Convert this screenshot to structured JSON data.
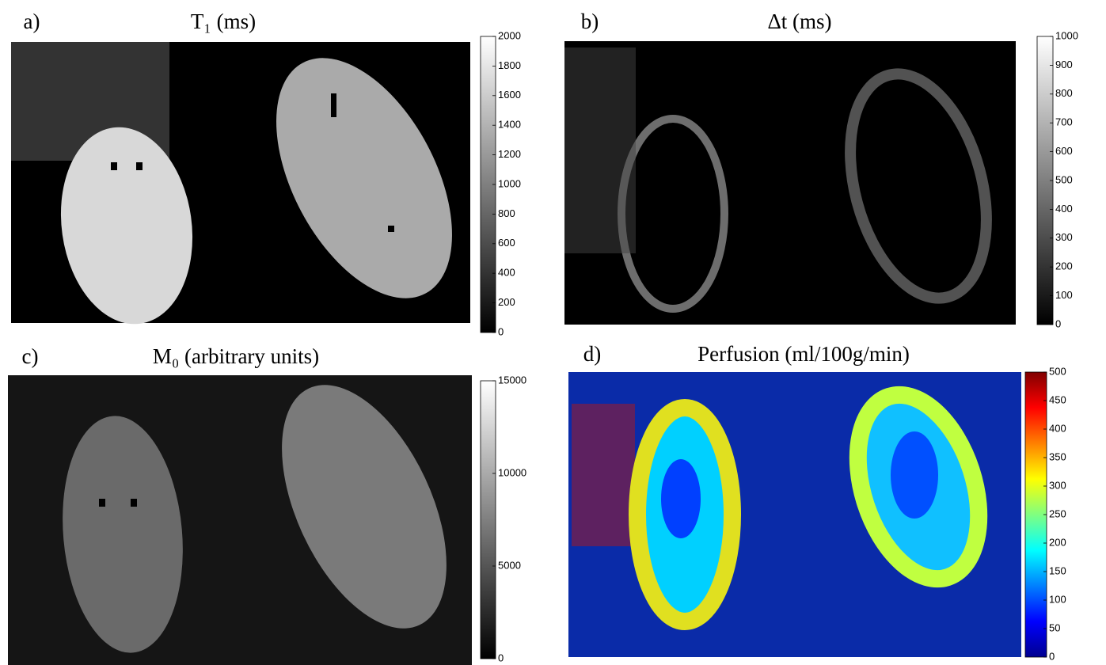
{
  "chart_data": [
    {
      "type": "image-colorbar",
      "panel": "a)",
      "title": "T₁ (ms)",
      "colormap": [
        "#000000",
        "#ffffff"
      ],
      "ylim": [
        0,
        2000
      ],
      "yticks": [
        0,
        200,
        400,
        600,
        800,
        1000,
        1200,
        1400,
        1600,
        1800,
        2000
      ]
    },
    {
      "type": "image-colorbar",
      "panel": "b)",
      "title": "Δt (ms)",
      "colormap": [
        "#000000",
        "#ffffff"
      ],
      "ylim": [
        0,
        1000
      ],
      "yticks": [
        0,
        100,
        200,
        300,
        400,
        500,
        600,
        700,
        800,
        900,
        1000
      ]
    },
    {
      "type": "image-colorbar",
      "panel": "c)",
      "title": "M₀ (arbitrary units)",
      "colormap": [
        "#000000",
        "#ffffff"
      ],
      "ylim": [
        0,
        15000
      ],
      "yticks": [
        0,
        5000,
        10000,
        15000
      ]
    },
    {
      "type": "image-colorbar",
      "panel": "d)",
      "title": "Perfusion  (ml/100g/min)",
      "colormap": [
        "#00008f",
        "#0000ff",
        "#0080ff",
        "#00ffff",
        "#80ff80",
        "#ffff00",
        "#ff8000",
        "#ff0000",
        "#800000"
      ],
      "ylim": [
        0,
        500
      ],
      "yticks": [
        0,
        50,
        100,
        150,
        200,
        250,
        300,
        350,
        400,
        450,
        500
      ]
    }
  ]
}
